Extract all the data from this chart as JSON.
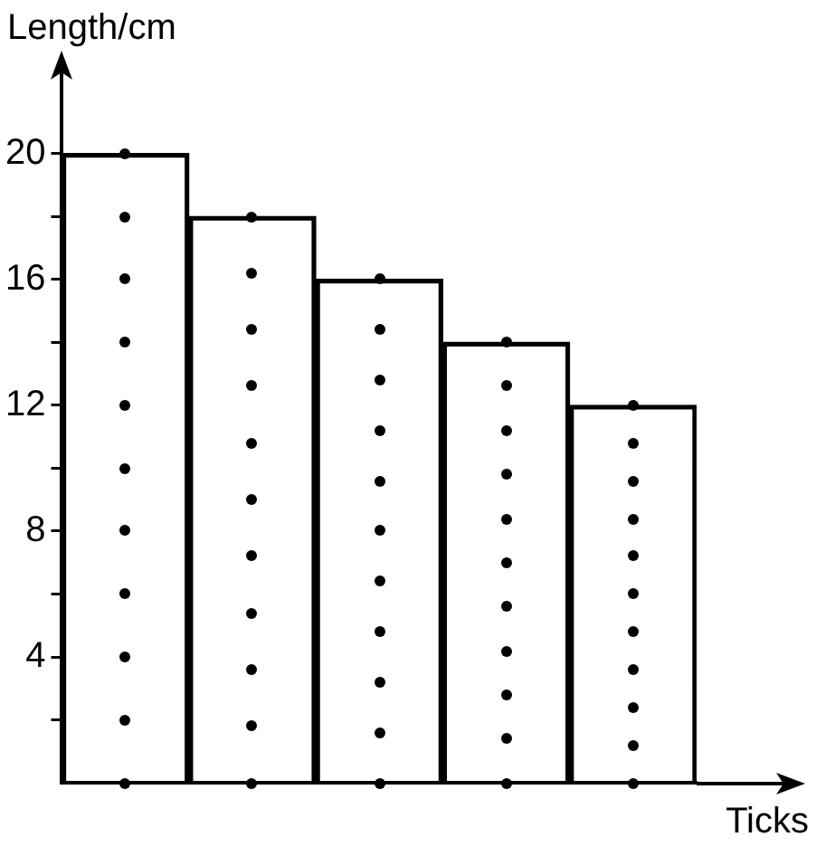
{
  "chart_data": {
    "type": "bar",
    "xlabel": "Ticks",
    "ylabel": "Length/cm",
    "categories": [
      null,
      null,
      null,
      null,
      null
    ],
    "values": [
      20,
      18,
      16,
      14,
      12
    ],
    "color": "#000000",
    "ylim": [
      0,
      22
    ],
    "yticks": [
      {
        "value": 2,
        "label": null
      },
      4,
      {
        "value": 6,
        "label": null
      },
      8,
      {
        "value": 10,
        "label": null
      },
      12,
      {
        "value": 14,
        "label": null
      },
      16,
      {
        "value": 18,
        "label": null
      },
      20
    ],
    "grid": false,
    "legend": false
  }
}
